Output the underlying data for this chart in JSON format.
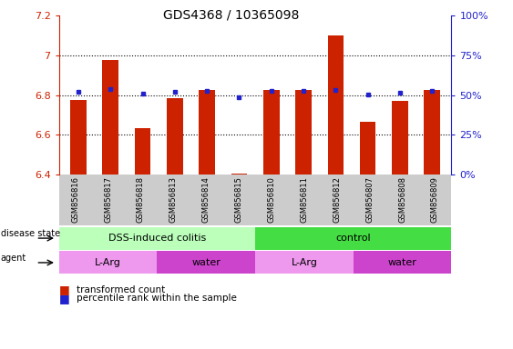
{
  "title": "GDS4368 / 10365098",
  "samples": [
    "GSM856816",
    "GSM856817",
    "GSM856818",
    "GSM856813",
    "GSM856814",
    "GSM856815",
    "GSM856810",
    "GSM856811",
    "GSM856812",
    "GSM856807",
    "GSM856808",
    "GSM856809"
  ],
  "red_values": [
    6.775,
    6.975,
    6.635,
    6.785,
    6.825,
    6.405,
    6.825,
    6.825,
    7.1,
    6.665,
    6.77,
    6.825
  ],
  "blue_values": [
    0.52,
    0.54,
    0.51,
    0.52,
    0.525,
    0.485,
    0.525,
    0.525,
    0.535,
    0.505,
    0.515,
    0.525
  ],
  "ylim_left": [
    6.4,
    7.2
  ],
  "ylim_right": [
    0,
    1.0
  ],
  "yticks_left": [
    6.4,
    6.6,
    6.8,
    7.0,
    7.2
  ],
  "yticks_left_labels": [
    "6.4",
    "6.6",
    "6.8",
    "7",
    "7.2"
  ],
  "yticks_right": [
    0.0,
    0.25,
    0.5,
    0.75,
    1.0
  ],
  "yticks_right_labels": [
    "0%",
    "25%",
    "50%",
    "75%",
    "100%"
  ],
  "hlines": [
    6.6,
    6.8,
    7.0
  ],
  "bar_color": "#cc2200",
  "dot_color": "#2222cc",
  "bar_width": 0.5,
  "disease_state_groups": [
    {
      "label": "DSS-induced colitis",
      "start": 0,
      "end": 6,
      "color": "#bbffbb"
    },
    {
      "label": "control",
      "start": 6,
      "end": 12,
      "color": "#44dd44"
    }
  ],
  "agent_groups": [
    {
      "label": "L-Arg",
      "start": 0,
      "end": 3,
      "color": "#ee99ee"
    },
    {
      "label": "water",
      "start": 3,
      "end": 6,
      "color": "#cc44cc"
    },
    {
      "label": "L-Arg",
      "start": 6,
      "end": 9,
      "color": "#ee99ee"
    },
    {
      "label": "water",
      "start": 9,
      "end": 12,
      "color": "#cc44cc"
    }
  ],
  "left_axis_color": "#cc2200",
  "right_axis_color": "#2222cc",
  "tick_bg_color": "#cccccc"
}
